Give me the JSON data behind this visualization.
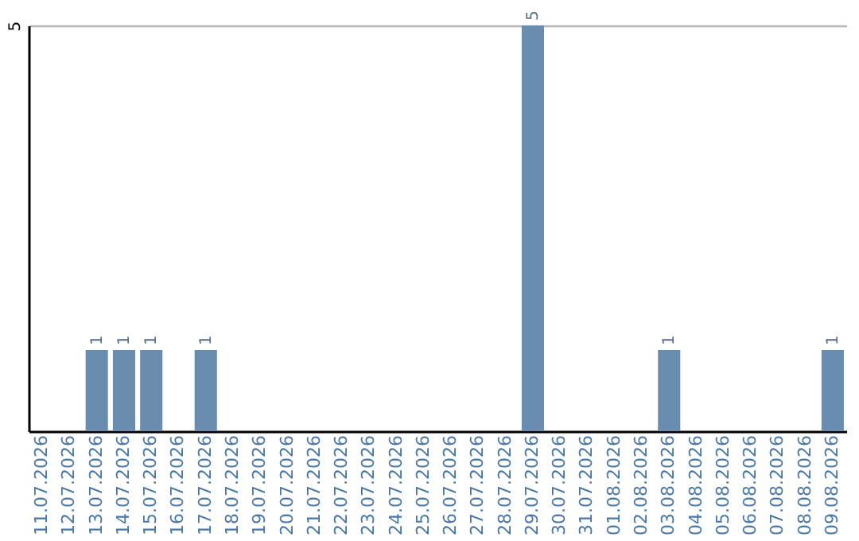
{
  "chart_data": {
    "type": "bar",
    "categories": [
      "11.07.2026",
      "12.07.2026",
      "13.07.2026",
      "14.07.2026",
      "15.07.2026",
      "16.07.2026",
      "17.07.2026",
      "18.07.2026",
      "19.07.2026",
      "20.07.2026",
      "21.07.2026",
      "22.07.2026",
      "23.07.2026",
      "24.07.2026",
      "25.07.2026",
      "26.07.2026",
      "27.07.2026",
      "28.07.2026",
      "29.07.2026",
      "30.07.2026",
      "31.07.2026",
      "01.08.2026",
      "02.08.2026",
      "03.08.2026",
      "04.08.2026",
      "05.08.2026",
      "06.08.2026",
      "07.08.2026",
      "08.08.2026",
      "09.08.2026"
    ],
    "values": [
      0,
      0,
      1,
      1,
      1,
      0,
      1,
      0,
      0,
      0,
      0,
      0,
      0,
      0,
      0,
      0,
      0,
      0,
      5,
      0,
      0,
      0,
      0,
      1,
      0,
      0,
      0,
      0,
      0,
      1
    ],
    "value_labels": [
      null,
      null,
      "1",
      "1",
      "1",
      null,
      "1",
      null,
      null,
      null,
      null,
      null,
      null,
      null,
      null,
      null,
      null,
      null,
      "5",
      null,
      null,
      null,
      null,
      "1",
      null,
      null,
      null,
      null,
      null,
      "1"
    ],
    "color": "#6a8caf",
    "ylim": [
      0,
      5
    ],
    "yticks": [
      {
        "value": 0,
        "label": null
      },
      5
    ],
    "grid": "y"
  }
}
